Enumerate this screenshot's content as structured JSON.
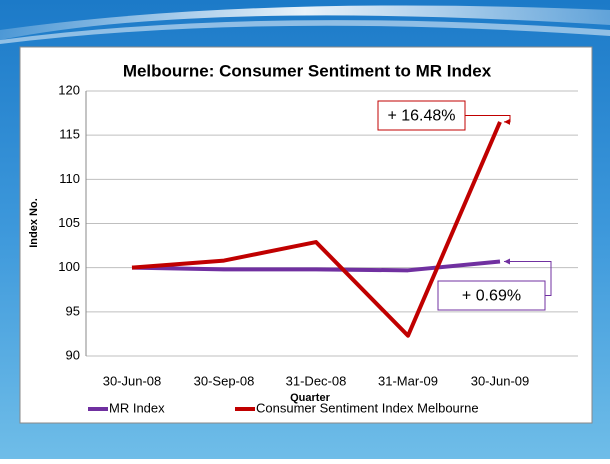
{
  "chart_data": {
    "type": "line",
    "title": "Melbourne: Consumer Sentiment to MR Index",
    "x_label": "Quarter",
    "y_label": "Index No.",
    "categories": [
      "30-Jun-08",
      "30-Sep-08",
      "31-Dec-08",
      "31-Mar-09",
      "30-Jun-09"
    ],
    "series": [
      {
        "name": "MR Index",
        "color": "#7030a0",
        "values": [
          100,
          99.8,
          99.8,
          99.7,
          100.7
        ]
      },
      {
        "name": "Consumer Sentiment Index Melbourne",
        "color": "#c00000",
        "values": [
          100,
          100.8,
          102.9,
          92.3,
          116.5
        ]
      }
    ],
    "ylim": [
      90,
      120
    ],
    "yticks": [
      90,
      95,
      100,
      105,
      110,
      115,
      120
    ],
    "grid": true,
    "legend": "bottom",
    "annotations": [
      {
        "text": "+ 16.48%",
        "color": "#c00000"
      },
      {
        "text": "+ 0.69%",
        "color": "#7030a0"
      }
    ]
  }
}
